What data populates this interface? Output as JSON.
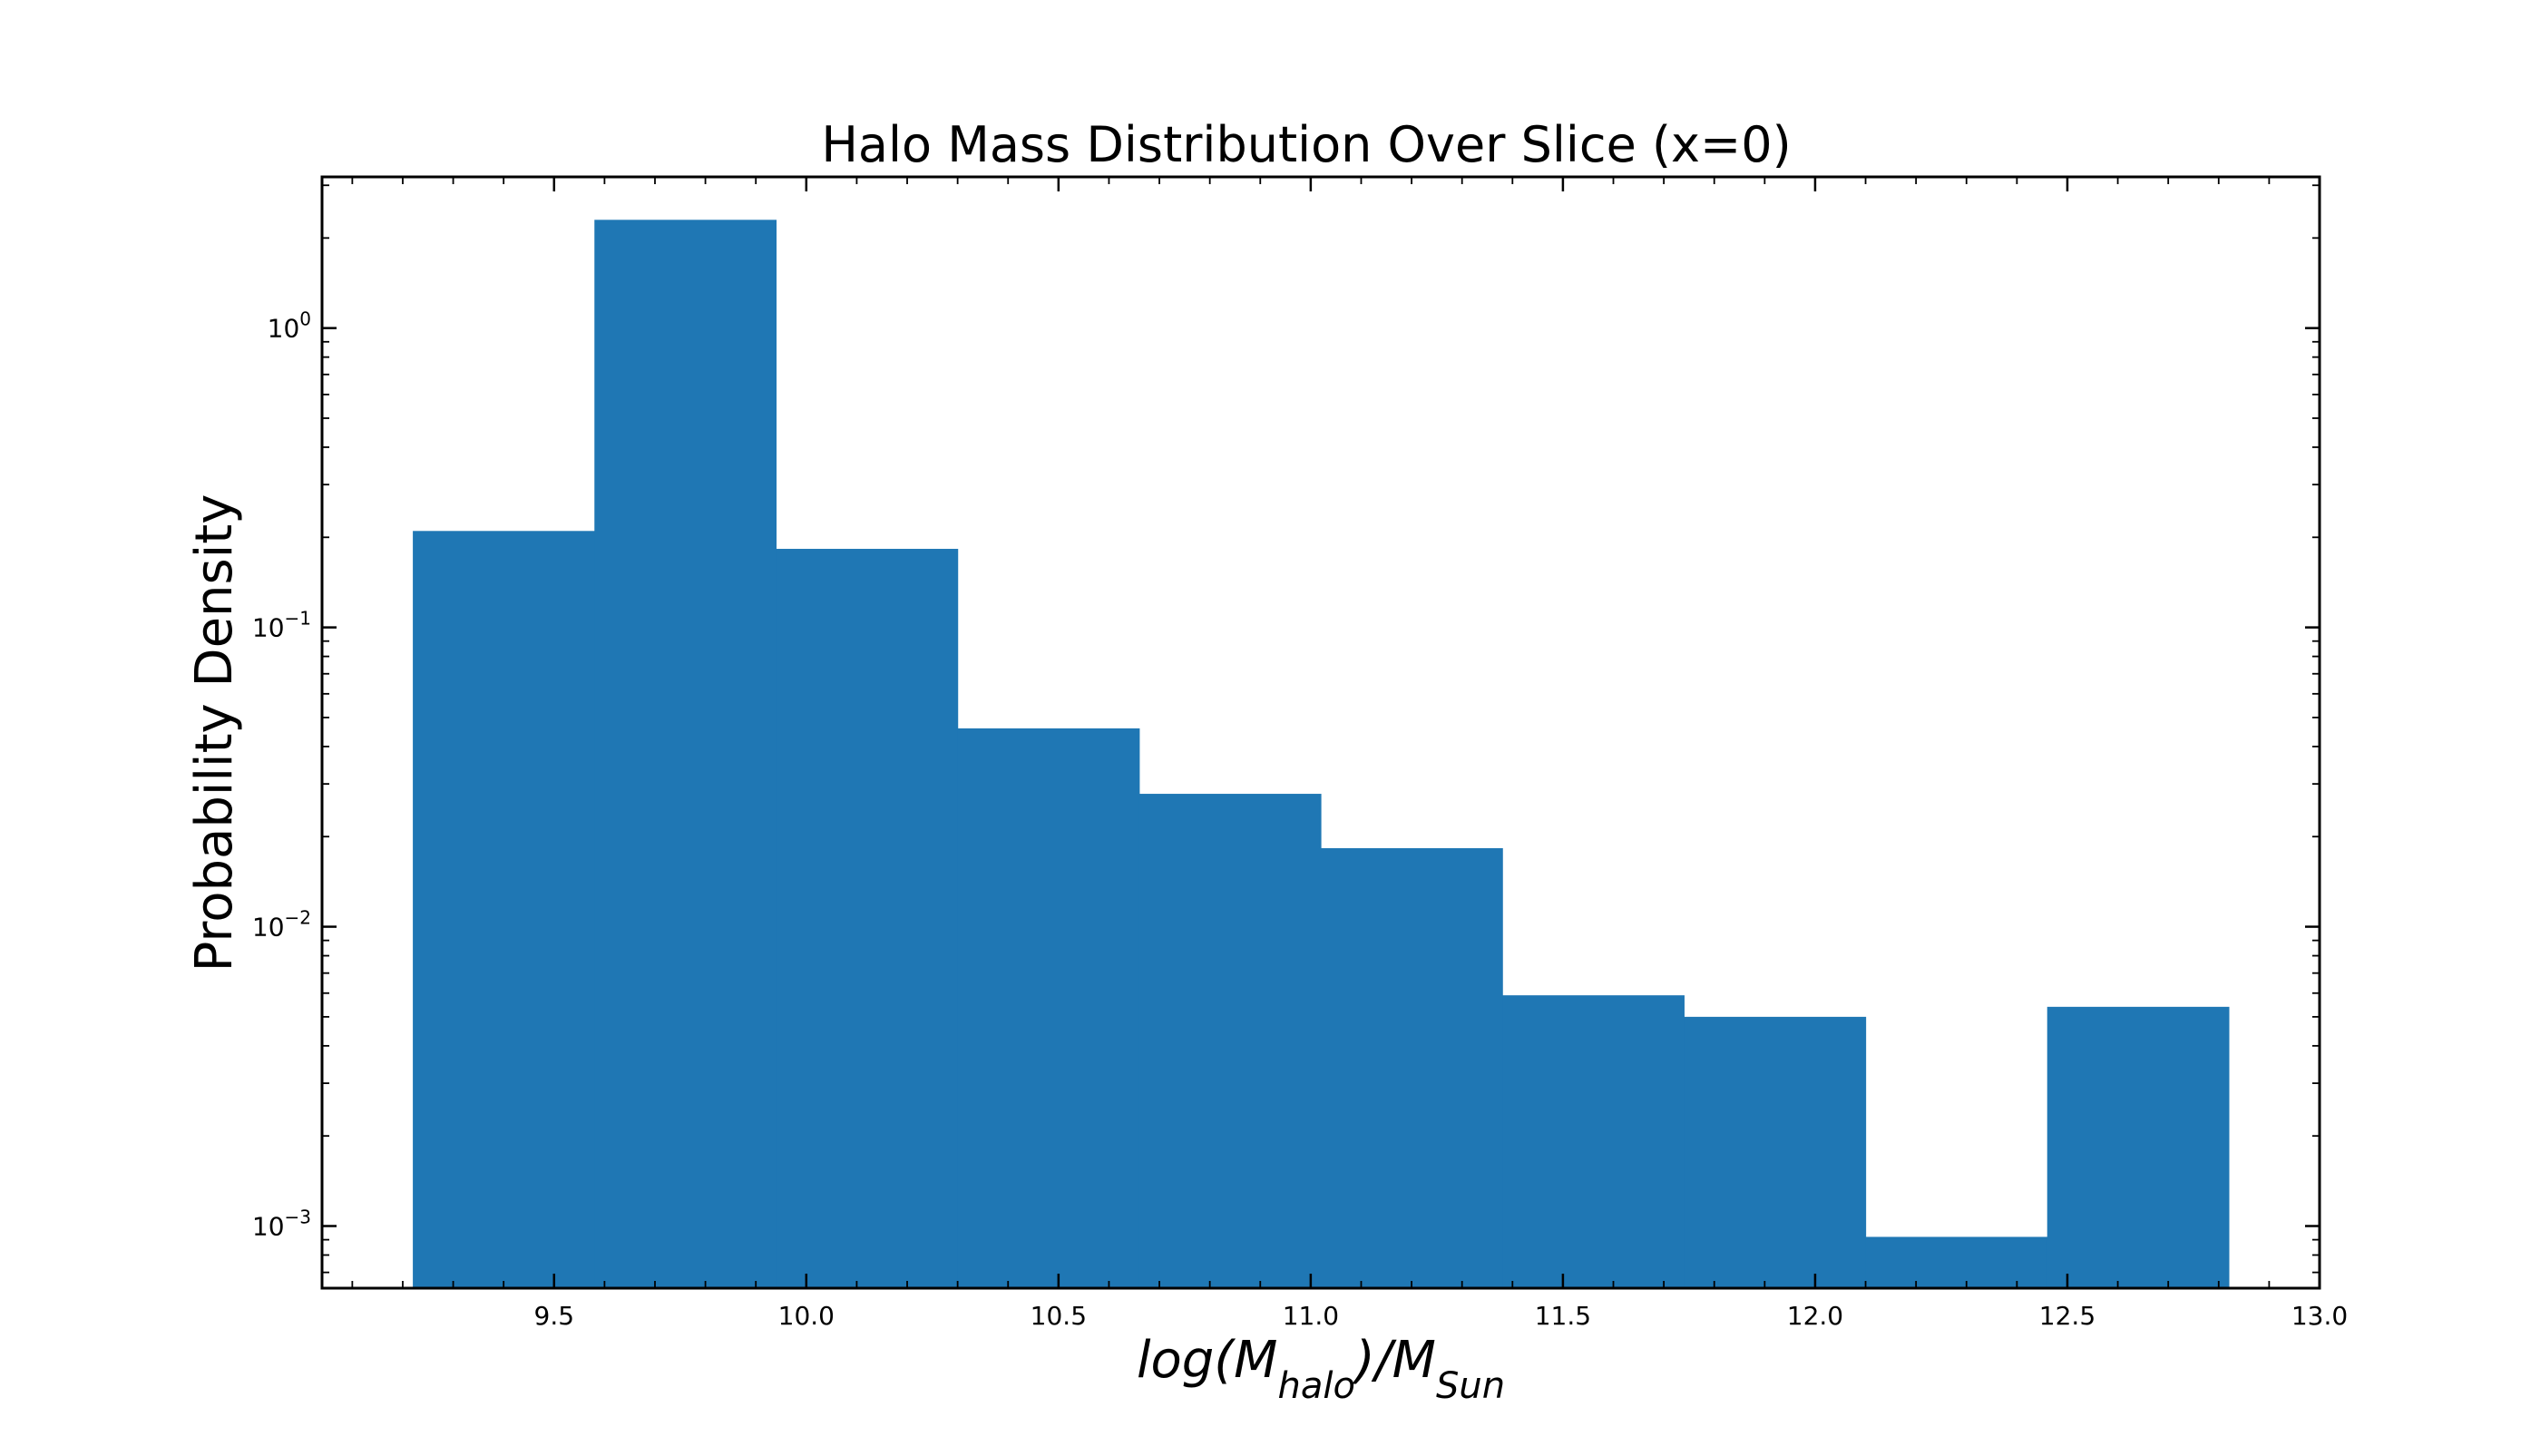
{
  "chart_data": {
    "type": "bar",
    "title": "Halo Mass Distribution Over Slice (x=0)",
    "xlabel": {
      "base": "log(M",
      "sub1": "halo",
      "mid": ")/M",
      "sub2": "Sun"
    },
    "ylabel": "Probability Density",
    "x_scale": "linear",
    "y_scale": "log",
    "xlim": [
      9.04,
      13.0
    ],
    "ylim": [
      0.00062,
      3.2
    ],
    "x_ticks": [
      {
        "value": 9.5,
        "label": "9.5"
      },
      {
        "value": 10.0,
        "label": "10.0"
      },
      {
        "value": 10.5,
        "label": "10.5"
      },
      {
        "value": 11.0,
        "label": "11.0"
      },
      {
        "value": 11.5,
        "label": "11.5"
      },
      {
        "value": 12.0,
        "label": "12.0"
      },
      {
        "value": 12.5,
        "label": "12.5"
      },
      {
        "value": 13.0,
        "label": "13.0"
      }
    ],
    "y_ticks": [
      {
        "value": 0.001,
        "base": "10",
        "exp": "−3"
      },
      {
        "value": 0.01,
        "base": "10",
        "exp": "−2"
      },
      {
        "value": 0.1,
        "base": "10",
        "exp": "−1"
      },
      {
        "value": 1,
        "base": "10",
        "exp": "0"
      }
    ],
    "bin_edges": [
      9.22,
      9.58,
      9.94,
      10.3,
      10.66,
      11.02,
      11.38,
      11.74,
      12.1,
      12.46,
      12.82
    ],
    "values": [
      0.21,
      2.3,
      0.183,
      0.046,
      0.0278,
      0.0183,
      0.0059,
      0.005,
      0.00092,
      0.0054
    ],
    "grid": false,
    "bar_color": "#1f77b4"
  }
}
